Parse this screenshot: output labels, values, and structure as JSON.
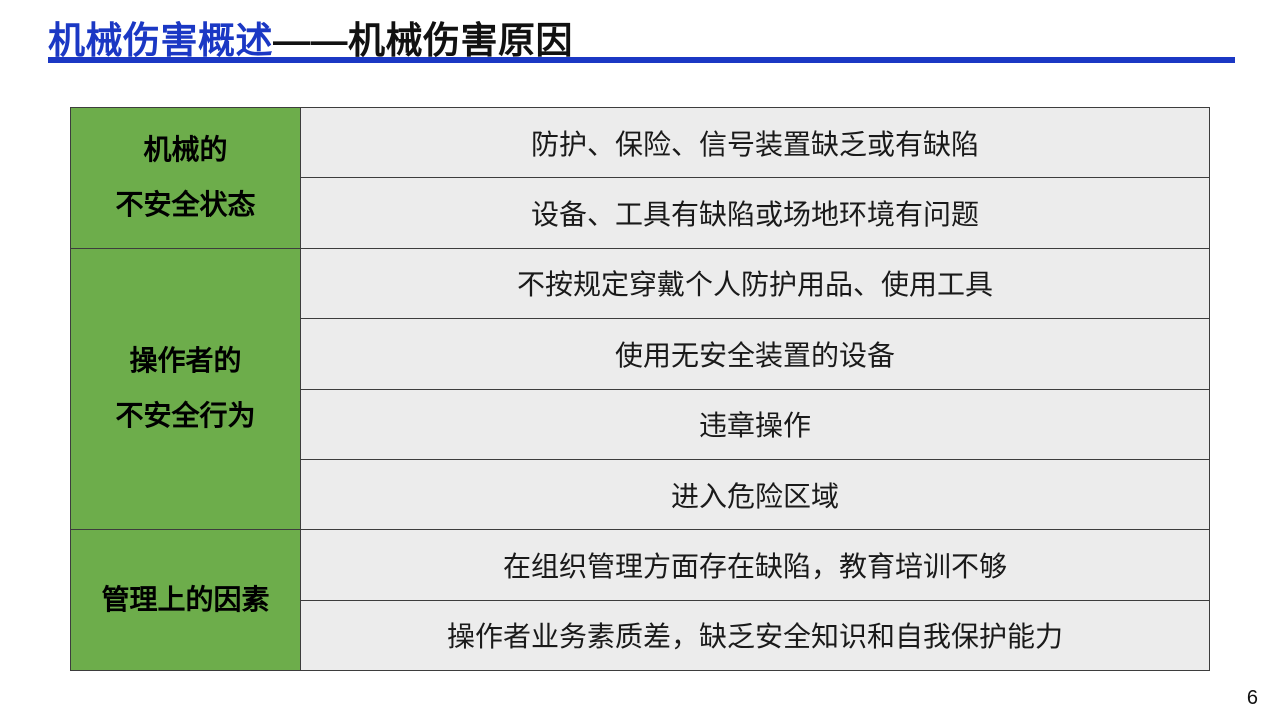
{
  "slide": {
    "title": {
      "highlight": "机械伤害概述",
      "rest": "——机械伤害原因"
    },
    "page_number": "6"
  },
  "colors": {
    "title_blue": "#1B38C4",
    "category_green": "#6DAD4B",
    "row_gray": "#ECECEC",
    "border": "#3d3d3d",
    "text": "#111111"
  },
  "table": {
    "groups": [
      {
        "category_lines": [
          "机械的",
          "不安全状态"
        ],
        "items": [
          "防护、保险、信号装置缺乏或有缺陷",
          "设备、工具有缺陷或场地环境有问题"
        ]
      },
      {
        "category_lines": [
          "操作者的",
          "不安全行为"
        ],
        "items": [
          "不按规定穿戴个人防护用品、使用工具",
          "使用无安全装置的设备",
          "违章操作",
          "进入危险区域"
        ]
      },
      {
        "category_lines": [
          "管理上的因素"
        ],
        "items": [
          "在组织管理方面存在缺陷，教育培训不够",
          "操作者业务素质差，缺乏安全知识和自我保护能力"
        ]
      }
    ]
  }
}
